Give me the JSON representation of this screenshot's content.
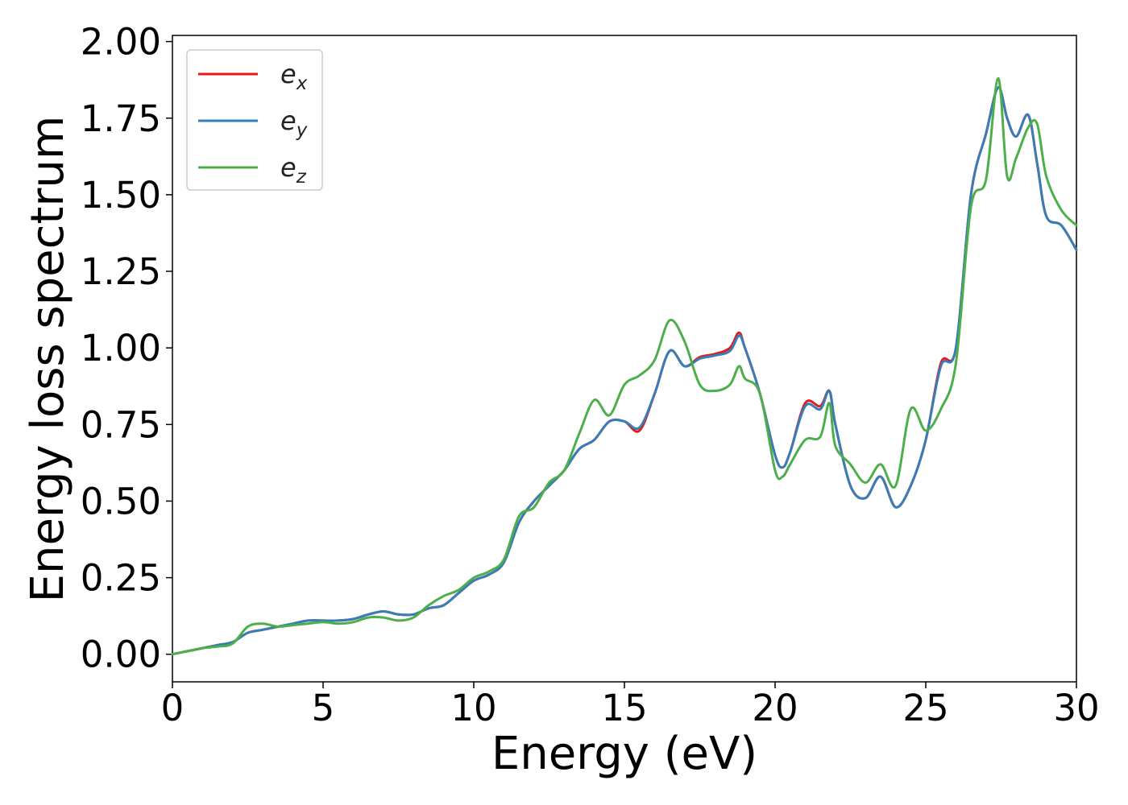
{
  "chart_data": {
    "type": "line",
    "title": "",
    "xlabel": "Energy (eV)",
    "ylabel": "Energy loss spectrum",
    "xlim": [
      0,
      30
    ],
    "ylim": [
      -0.09,
      2.02
    ],
    "xticks": [
      "0",
      "5",
      "10",
      "15",
      "20",
      "25",
      "30"
    ],
    "yticks": [
      "0.00",
      "0.25",
      "0.50",
      "0.75",
      "1.00",
      "1.25",
      "1.50",
      "1.75",
      "2.00"
    ],
    "grid": false,
    "legend_position": "top-left",
    "series": [
      {
        "name": "e",
        "subscript": "x",
        "color": "#e41a1c",
        "x": [
          0,
          0.5,
          1,
          1.5,
          2,
          2.5,
          3,
          3.5,
          4,
          4.5,
          5,
          5.5,
          6,
          6.5,
          7,
          7.5,
          8,
          8.5,
          9,
          9.5,
          10,
          10.5,
          11,
          11.5,
          12,
          12.5,
          13,
          13.5,
          14,
          14.5,
          15,
          15.5,
          16,
          16.5,
          17,
          17.5,
          18,
          18.5,
          18.8,
          19,
          19.5,
          20,
          20.25,
          20.5,
          21,
          21.5,
          21.8,
          22,
          22.5,
          23,
          23.5,
          24,
          24.5,
          25,
          25.5,
          26,
          26.5,
          27,
          27.4,
          27.7,
          28,
          28.4,
          28.7,
          29,
          29.5,
          30
        ],
        "y": [
          0.0,
          0.01,
          0.02,
          0.03,
          0.04,
          0.07,
          0.08,
          0.09,
          0.1,
          0.11,
          0.11,
          0.11,
          0.115,
          0.13,
          0.14,
          0.13,
          0.13,
          0.15,
          0.16,
          0.2,
          0.24,
          0.26,
          0.3,
          0.43,
          0.5,
          0.55,
          0.6,
          0.67,
          0.7,
          0.76,
          0.76,
          0.73,
          0.85,
          0.99,
          0.94,
          0.97,
          0.98,
          1.0,
          1.05,
          1.0,
          0.85,
          0.65,
          0.61,
          0.66,
          0.82,
          0.81,
          0.86,
          0.75,
          0.55,
          0.51,
          0.58,
          0.48,
          0.55,
          0.7,
          0.95,
          1.0,
          1.5,
          1.7,
          1.85,
          1.75,
          1.69,
          1.76,
          1.6,
          1.43,
          1.4,
          1.32
        ]
      },
      {
        "name": "e",
        "subscript": "y",
        "color": "#377eb8",
        "x": [
          0,
          0.5,
          1,
          1.5,
          2,
          2.5,
          3,
          3.5,
          4,
          4.5,
          5,
          5.5,
          6,
          6.5,
          7,
          7.5,
          8,
          8.5,
          9,
          9.5,
          10,
          10.5,
          11,
          11.5,
          12,
          12.5,
          13,
          13.5,
          14,
          14.5,
          15,
          15.5,
          16,
          16.5,
          17,
          17.5,
          18,
          18.5,
          18.8,
          19,
          19.5,
          20,
          20.25,
          20.5,
          21,
          21.5,
          21.8,
          22,
          22.5,
          23,
          23.5,
          24,
          24.5,
          25,
          25.5,
          26,
          26.5,
          27,
          27.4,
          27.7,
          28,
          28.4,
          28.7,
          29,
          29.5,
          30
        ],
        "y": [
          0.0,
          0.01,
          0.02,
          0.03,
          0.04,
          0.07,
          0.08,
          0.09,
          0.1,
          0.11,
          0.11,
          0.11,
          0.115,
          0.13,
          0.14,
          0.13,
          0.13,
          0.15,
          0.16,
          0.2,
          0.24,
          0.26,
          0.3,
          0.43,
          0.5,
          0.55,
          0.6,
          0.67,
          0.7,
          0.76,
          0.76,
          0.74,
          0.85,
          0.99,
          0.94,
          0.965,
          0.975,
          0.99,
          1.04,
          1.0,
          0.85,
          0.65,
          0.61,
          0.66,
          0.81,
          0.8,
          0.86,
          0.75,
          0.55,
          0.51,
          0.58,
          0.48,
          0.55,
          0.7,
          0.94,
          1.0,
          1.5,
          1.7,
          1.85,
          1.75,
          1.69,
          1.76,
          1.6,
          1.43,
          1.4,
          1.32
        ]
      },
      {
        "name": "e",
        "subscript": "z",
        "color": "#4daf4a",
        "x": [
          0,
          0.5,
          1,
          1.5,
          2,
          2.5,
          3,
          3.5,
          4,
          4.5,
          5,
          5.5,
          6,
          6.5,
          7,
          7.5,
          8,
          8.5,
          9,
          9.5,
          10,
          10.5,
          11,
          11.5,
          12,
          12.5,
          13,
          13.5,
          14,
          14.5,
          15,
          15.5,
          16,
          16.5,
          17,
          17.5,
          18,
          18.5,
          18.8,
          19,
          19.5,
          20,
          20.25,
          20.5,
          21,
          21.5,
          21.8,
          22,
          22.5,
          23,
          23.5,
          24,
          24.5,
          25,
          25.5,
          26,
          26.5,
          27,
          27.4,
          27.7,
          28,
          28.4,
          28.7,
          29,
          29.5,
          30
        ],
        "y": [
          0.0,
          0.01,
          0.02,
          0.025,
          0.035,
          0.09,
          0.1,
          0.09,
          0.095,
          0.1,
          0.105,
          0.1,
          0.105,
          0.12,
          0.12,
          0.11,
          0.12,
          0.16,
          0.19,
          0.21,
          0.25,
          0.27,
          0.31,
          0.45,
          0.48,
          0.56,
          0.6,
          0.72,
          0.83,
          0.78,
          0.88,
          0.91,
          0.96,
          1.09,
          1.02,
          0.88,
          0.86,
          0.88,
          0.94,
          0.9,
          0.85,
          0.6,
          0.58,
          0.62,
          0.7,
          0.71,
          0.82,
          0.68,
          0.62,
          0.56,
          0.62,
          0.55,
          0.8,
          0.73,
          0.8,
          0.95,
          1.46,
          1.55,
          1.88,
          1.56,
          1.62,
          1.72,
          1.73,
          1.56,
          1.45,
          1.4
        ]
      }
    ]
  }
}
